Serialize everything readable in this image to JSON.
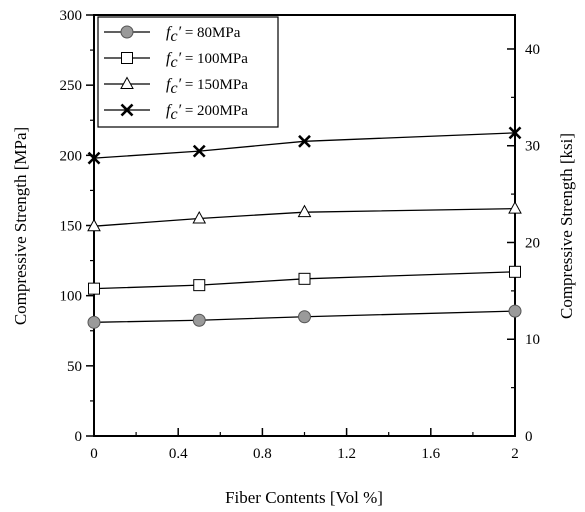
{
  "chart_data": {
    "type": "line",
    "x": [
      0,
      0.5,
      1,
      2
    ],
    "series": [
      {
        "name": "= 80MPa",
        "prefix": "f",
        "sub": "c",
        "prime": "′",
        "marker": "circle",
        "values": [
          81,
          82.5,
          85,
          89
        ]
      },
      {
        "name": "= 100MPa",
        "prefix": "f",
        "sub": "c",
        "prime": "′",
        "marker": "square",
        "values": [
          105,
          107.5,
          112,
          117
        ]
      },
      {
        "name": "= 150MPa",
        "prefix": "f",
        "sub": "c",
        "prime": "′",
        "marker": "triangle",
        "values": [
          149.5,
          155,
          159.5,
          162
        ]
      },
      {
        "name": "= 200MPa",
        "prefix": "f",
        "sub": "c",
        "prime": "′",
        "marker": "x",
        "values": [
          198,
          203,
          210,
          216
        ]
      }
    ],
    "xlabel": "Fiber Contents [Vol %]",
    "ylabel": "Compressive Strength [MPa]",
    "y2label": "Compressive Strength [ksi]",
    "xlim": [
      0,
      2
    ],
    "ylim": [
      0,
      300
    ],
    "y2lim": [
      0,
      43.5113
    ],
    "xticks": [
      0,
      0.4,
      0.8,
      1.2,
      1.6,
      2
    ],
    "xtick_labels": [
      "0",
      "0.4",
      "0.8",
      "1.2",
      "1.6",
      "2"
    ],
    "yticks": [
      0,
      50,
      100,
      150,
      200,
      250,
      300
    ],
    "ytick_labels": [
      "0",
      "50",
      "100",
      "150",
      "200",
      "250",
      "300"
    ],
    "y2ticks": [
      0,
      10,
      20,
      30,
      40
    ],
    "y2tick_labels": [
      "0",
      "10",
      "20",
      "30",
      "40"
    ],
    "legend_position": "top-left",
    "grid": false,
    "colors": {
      "line": "#000000",
      "circle_fill": "#9a9a9a",
      "square_fill": "#ffffff"
    }
  }
}
